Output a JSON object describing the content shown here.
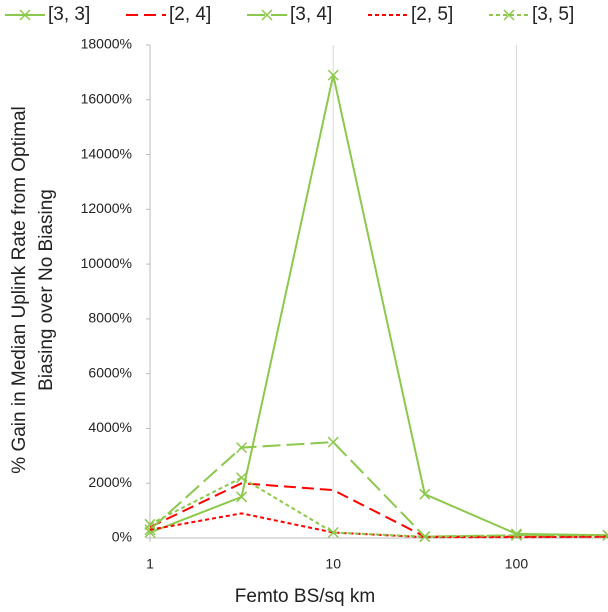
{
  "chart_data": {
    "type": "line",
    "xlabel": "Femto BS/sq km",
    "ylabel": [
      "% Gain in Median Uplink Rate from Optimal",
      "Biasing over No Biasing"
    ],
    "x": [
      1,
      3.16,
      10,
      31.6,
      100,
      316
    ],
    "xlim": [
      1,
      316
    ],
    "xticks": [
      1,
      10,
      100
    ],
    "xscale": "log",
    "ylim": [
      0,
      18000
    ],
    "yticks": [
      {
        "value": 0,
        "label": "0%"
      },
      {
        "value": 2000,
        "label": "2000%"
      },
      {
        "value": 4000,
        "label": "4000%"
      },
      {
        "value": 6000,
        "label": "6000%"
      },
      {
        "value": 8000,
        "label": "8000%"
      },
      {
        "value": 10000,
        "label": "10000%"
      },
      {
        "value": 12000,
        "label": "12000%"
      },
      {
        "value": 14000,
        "label": "14000%"
      },
      {
        "value": 16000,
        "label": "16000%"
      },
      {
        "value": 18000,
        "label": "18000%"
      }
    ],
    "grid": "x",
    "legend": "top",
    "series": [
      {
        "name": "[3, 3]",
        "color": "#8cc84b",
        "dash": "solid",
        "marker": "x",
        "values": [
          200,
          1500,
          16900,
          1600,
          150,
          100
        ]
      },
      {
        "name": "[2, 4]",
        "color": "#ff0000",
        "dash": "dashed",
        "marker": "none",
        "values": [
          400,
          2000,
          1750,
          50,
          50,
          50
        ]
      },
      {
        "name": "[3, 4]",
        "color": "#8cc84b",
        "dash": "longdash",
        "marker": "x",
        "values": [
          300,
          3300,
          3500,
          50,
          100,
          100
        ]
      },
      {
        "name": "[2, 5]",
        "color": "#ff0000",
        "dash": "dotted",
        "marker": "none",
        "values": [
          300,
          900,
          200,
          30,
          30,
          50
        ]
      },
      {
        "name": "[3, 5]",
        "color": "#8cc84b",
        "dash": "dotted",
        "marker": "x",
        "values": [
          500,
          2200,
          200,
          50,
          100,
          100
        ]
      }
    ]
  }
}
